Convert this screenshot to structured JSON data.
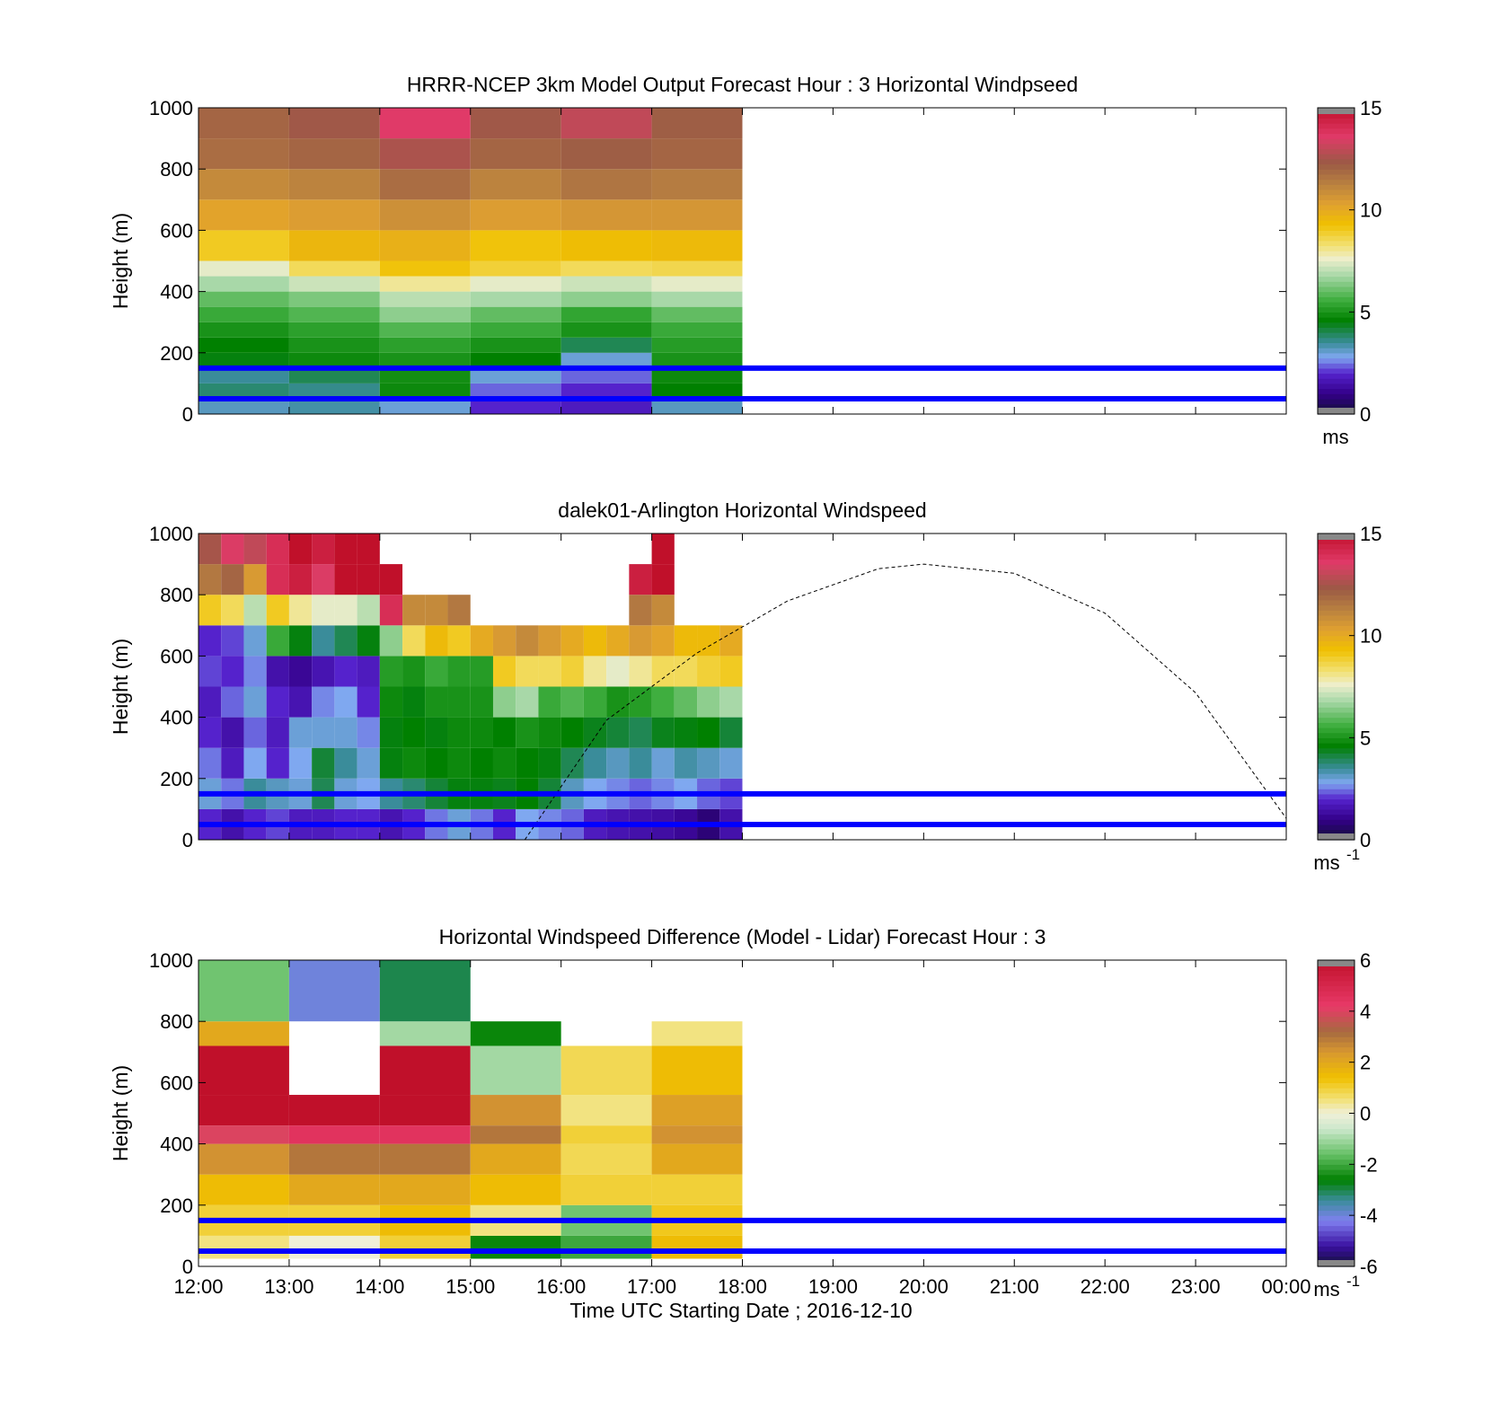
{
  "figure": {
    "xaxis_label": "Time UTC  Starting Date ; 2016-12-10",
    "xticks": [
      "12:00",
      "13:00",
      "14:00",
      "15:00",
      "16:00",
      "17:00",
      "18:00",
      "19:00",
      "20:00",
      "21:00",
      "22:00",
      "23:00",
      "00:00"
    ]
  },
  "chart_data": [
    {
      "type": "heatmap",
      "title": "HRRR-NCEP 3km Model Output   Forecast Hour : 3 Horizontal Windpseed",
      "ylabel": "Height (m)",
      "ylim": [
        0,
        1000
      ],
      "yticks": [
        "0",
        "200",
        "400",
        "600",
        "800",
        "1000"
      ],
      "xlim_hours": [
        12,
        24
      ],
      "colorbar": {
        "min": 0,
        "max": 15,
        "ticks": [
          "0",
          "5",
          "10",
          "15"
        ],
        "unit": "ms"
      },
      "reference_lines_m": [
        50,
        150
      ],
      "reference_line_color": "#0000ff",
      "height_bins_m": [
        0,
        50,
        100,
        150,
        200,
        250,
        300,
        350,
        400,
        450,
        500,
        600,
        700,
        800,
        900
      ],
      "columns": [
        {
          "start_hour": 12,
          "end_hour": 13,
          "values": [
            3.2,
            3.8,
            3.5,
            4.5,
            4.6,
            5.0,
            5.5,
            6.0,
            6.8,
            7.5,
            9.0,
            10.2,
            11.0,
            11.8,
            12.0
          ]
        },
        {
          "start_hour": 13,
          "end_hour": 14,
          "values": [
            3.4,
            3.6,
            4.0,
            4.8,
            5.0,
            5.3,
            5.8,
            6.3,
            7.2,
            8.5,
            9.6,
            10.4,
            11.2,
            12.0,
            12.4
          ]
        },
        {
          "start_hour": 14,
          "end_hour": 15,
          "values": [
            3.0,
            4.8,
            4.9,
            5.0,
            5.3,
            5.8,
            6.5,
            7.0,
            8.0,
            9.2,
            9.8,
            10.8,
            11.8,
            12.6,
            13.6
          ]
        },
        {
          "start_hour": 15,
          "end_hour": 16,
          "values": [
            2.0,
            2.4,
            3.0,
            4.6,
            5.0,
            5.5,
            6.0,
            6.8,
            7.5,
            8.8,
            9.2,
            10.4,
            11.2,
            12.0,
            12.4
          ]
        },
        {
          "start_hour": 16,
          "end_hour": 17,
          "values": [
            1.8,
            2.0,
            2.4,
            3.0,
            4.0,
            5.0,
            5.4,
            6.5,
            7.2,
            8.5,
            9.4,
            10.6,
            11.6,
            12.2,
            13.0
          ]
        },
        {
          "start_hour": 17,
          "end_hour": 18,
          "values": [
            3.2,
            4.6,
            4.8,
            5.0,
            5.2,
            5.5,
            6.0,
            6.8,
            7.5,
            8.6,
            9.5,
            10.6,
            11.4,
            12.0,
            12.2
          ]
        }
      ]
    },
    {
      "type": "heatmap",
      "title": "dalek01-Arlington  Horizontal Windspeed",
      "ylabel": "Height (m)",
      "ylim": [
        0,
        1000
      ],
      "yticks": [
        "0",
        "200",
        "400",
        "600",
        "800",
        "1000"
      ],
      "xlim_hours": [
        12,
        24
      ],
      "colorbar": {
        "min": 0,
        "max": 15,
        "ticks": [
          "0",
          "5",
          "10",
          "15"
        ],
        "unit": "ms",
        "unit_exponent": "-1"
      },
      "reference_lines_m": [
        50,
        150
      ],
      "reference_line_color": "#0000ff",
      "height_bins_m": [
        0,
        100,
        200,
        300,
        400,
        500,
        600,
        700,
        800,
        900
      ],
      "columns": [
        {
          "start_hour": 12.0,
          "end_hour": 12.25,
          "values": [
            2.0,
            3.0,
            2.5,
            2.0,
            1.8,
            2.2,
            2.0,
            9.0,
            11.5,
            12.5
          ]
        },
        {
          "start_hour": 12.25,
          "end_hour": 12.5,
          "values": [
            1.5,
            2.5,
            1.8,
            1.5,
            2.4,
            2.0,
            2.2,
            8.5,
            12.0,
            13.5
          ]
        },
        {
          "start_hour": 12.5,
          "end_hour": 12.75,
          "values": [
            2.0,
            3.5,
            2.8,
            2.4,
            3.0,
            2.6,
            3.0,
            7.0,
            10.5,
            13.0
          ]
        },
        {
          "start_hour": 12.75,
          "end_hour": 13.0,
          "values": [
            2.2,
            3.2,
            2.0,
            1.8,
            2.0,
            1.5,
            5.5,
            9.0,
            14.0,
            14.0
          ]
        },
        {
          "start_hour": 13.0,
          "end_hour": 13.25,
          "values": [
            1.8,
            3.0,
            2.8,
            3.0,
            1.6,
            1.2,
            4.5,
            8.0,
            14.5,
            15.0
          ]
        },
        {
          "start_hour": 13.25,
          "end_hour": 13.5,
          "values": [
            1.8,
            4.0,
            4.2,
            3.0,
            2.6,
            1.6,
            3.5,
            7.5,
            13.5,
            14.5
          ]
        },
        {
          "start_hour": 13.5,
          "end_hour": 13.75,
          "values": [
            2.0,
            3.0,
            3.5,
            3.0,
            2.8,
            2.0,
            4.0,
            7.5,
            15.0,
            15.0
          ]
        },
        {
          "start_hour": 13.75,
          "end_hour": 14.0,
          "values": [
            2.0,
            2.8,
            3.0,
            2.6,
            2.0,
            1.8,
            4.5,
            7.0,
            15.0,
            15.0
          ]
        },
        {
          "start_hour": 14.0,
          "end_hour": 14.25,
          "values": [
            1.6,
            3.5,
            4.5,
            4.5,
            4.8,
            5.2,
            6.5,
            14.0,
            15.0,
            null
          ]
        },
        {
          "start_hour": 14.25,
          "end_hour": 14.5,
          "values": [
            2.0,
            3.8,
            4.8,
            4.6,
            4.5,
            5.0,
            8.5,
            11.0,
            null,
            null
          ]
        },
        {
          "start_hour": 14.5,
          "end_hour": 14.75,
          "values": [
            2.5,
            4.2,
            4.6,
            4.5,
            5.0,
            5.5,
            9.5,
            11.0,
            null,
            null
          ]
        },
        {
          "start_hour": 14.75,
          "end_hour": 15.0,
          "values": [
            3.0,
            4.5,
            4.8,
            4.8,
            5.0,
            5.2,
            9.0,
            11.5,
            null,
            null
          ]
        },
        {
          "start_hour": 15.0,
          "end_hour": 15.25,
          "values": [
            2.5,
            4.5,
            4.6,
            4.8,
            5.0,
            5.2,
            10.0,
            null,
            null,
            null
          ]
        },
        {
          "start_hour": 15.25,
          "end_hour": 15.5,
          "values": [
            2.0,
            4.4,
            4.8,
            4.6,
            6.5,
            9.0,
            10.5,
            null,
            null,
            null
          ]
        },
        {
          "start_hour": 15.5,
          "end_hour": 15.75,
          "values": [
            2.8,
            4.6,
            4.6,
            5.0,
            6.8,
            8.5,
            11.0,
            null,
            null,
            null
          ]
        },
        {
          "start_hour": 15.75,
          "end_hour": 16.0,
          "values": [
            2.6,
            4.2,
            4.5,
            4.8,
            5.5,
            8.5,
            10.5,
            null,
            null,
            null
          ]
        },
        {
          "start_hour": 16.0,
          "end_hour": 16.25,
          "values": [
            2.4,
            3.2,
            4.0,
            4.6,
            5.8,
            8.8,
            10.0,
            null,
            null,
            null
          ]
        },
        {
          "start_hour": 16.25,
          "end_hour": 16.5,
          "values": [
            1.8,
            2.8,
            3.5,
            4.4,
            5.5,
            8.0,
            9.5,
            null,
            null,
            null
          ]
        },
        {
          "start_hour": 16.5,
          "end_hour": 16.75,
          "values": [
            1.6,
            2.6,
            3.2,
            4.2,
            5.0,
            7.5,
            10.0,
            null,
            null,
            null
          ]
        },
        {
          "start_hour": 16.75,
          "end_hour": 17.0,
          "values": [
            1.5,
            2.4,
            3.5,
            4.0,
            5.2,
            8.0,
            10.5,
            11.5,
            14.5,
            null
          ]
        },
        {
          "start_hour": 17.0,
          "end_hour": 17.25,
          "values": [
            1.4,
            2.6,
            3.0,
            4.4,
            5.6,
            8.5,
            10.2,
            11.0,
            15.0,
            15.0
          ]
        },
        {
          "start_hour": 17.25,
          "end_hour": 17.5,
          "values": [
            1.2,
            2.8,
            3.4,
            4.5,
            6.0,
            8.5,
            9.5,
            null,
            null,
            null
          ]
        },
        {
          "start_hour": 17.5,
          "end_hour": 17.75,
          "values": [
            0.8,
            2.4,
            3.2,
            4.6,
            6.5,
            8.8,
            9.5,
            null,
            null,
            null
          ]
        },
        {
          "start_hour": 17.75,
          "end_hour": 18.0,
          "values": [
            1.5,
            2.2,
            3.0,
            4.2,
            6.8,
            9.0,
            10.0,
            null,
            null,
            null
          ]
        }
      ],
      "dashed_curve": {
        "points": [
          [
            15.6,
            0
          ],
          [
            16.5,
            390
          ],
          [
            17.5,
            610
          ],
          [
            18.5,
            780
          ],
          [
            19.5,
            885
          ],
          [
            20.0,
            900
          ],
          [
            21.0,
            870
          ],
          [
            22.0,
            740
          ],
          [
            23.0,
            480
          ],
          [
            24.0,
            70
          ]
        ]
      }
    },
    {
      "type": "heatmap",
      "title": "Horizontal Windspeed Difference (Model - Lidar) Forecast Hour : 3",
      "ylabel": "Height (m)",
      "ylim": [
        0,
        1000
      ],
      "yticks": [
        "0",
        "200",
        "400",
        "600",
        "800",
        "1000"
      ],
      "xlim_hours": [
        12,
        24
      ],
      "colorbar": {
        "min": -6,
        "max": 6,
        "ticks": [
          "-6",
          "-4",
          "-2",
          "0",
          "2",
          "4",
          "6"
        ],
        "unit": "ms",
        "unit_exponent": "-1"
      },
      "reference_lines_m": [
        50,
        150
      ],
      "reference_line_color": "#0000ff",
      "height_bins_m": [
        25,
        100,
        200,
        300,
        400,
        460,
        560,
        720,
        800
      ],
      "columns": [
        {
          "start_hour": 12,
          "end_hour": 13,
          "values": [
            0.5,
            1.0,
            1.5,
            2.5,
            4.0,
            6.5,
            6.5,
            2.0,
            -1.5
          ]
        },
        {
          "start_hour": 13,
          "end_hour": 14,
          "values": [
            0.0,
            1.0,
            2.0,
            3.0,
            4.5,
            6.5,
            null,
            null,
            -4.0
          ]
        },
        {
          "start_hour": 14,
          "end_hour": 15,
          "values": [
            1.0,
            1.5,
            2.0,
            3.0,
            4.5,
            6.5,
            6.5,
            -1.0,
            -3.0
          ]
        },
        {
          "start_hour": 15,
          "end_hour": 16,
          "values": [
            -2.5,
            0.5,
            1.5,
            2.0,
            3.0,
            2.5,
            -1.0,
            -2.5,
            null
          ]
        },
        {
          "start_hour": 16,
          "end_hour": 17,
          "values": [
            -2.0,
            -1.5,
            1.0,
            0.8,
            1.0,
            0.5,
            0.8,
            null,
            null
          ]
        },
        {
          "start_hour": 17,
          "end_hour": 18,
          "values": [
            1.5,
            1.2,
            1.0,
            2.0,
            2.5,
            2.2,
            1.5,
            0.5,
            null
          ]
        }
      ]
    }
  ]
}
